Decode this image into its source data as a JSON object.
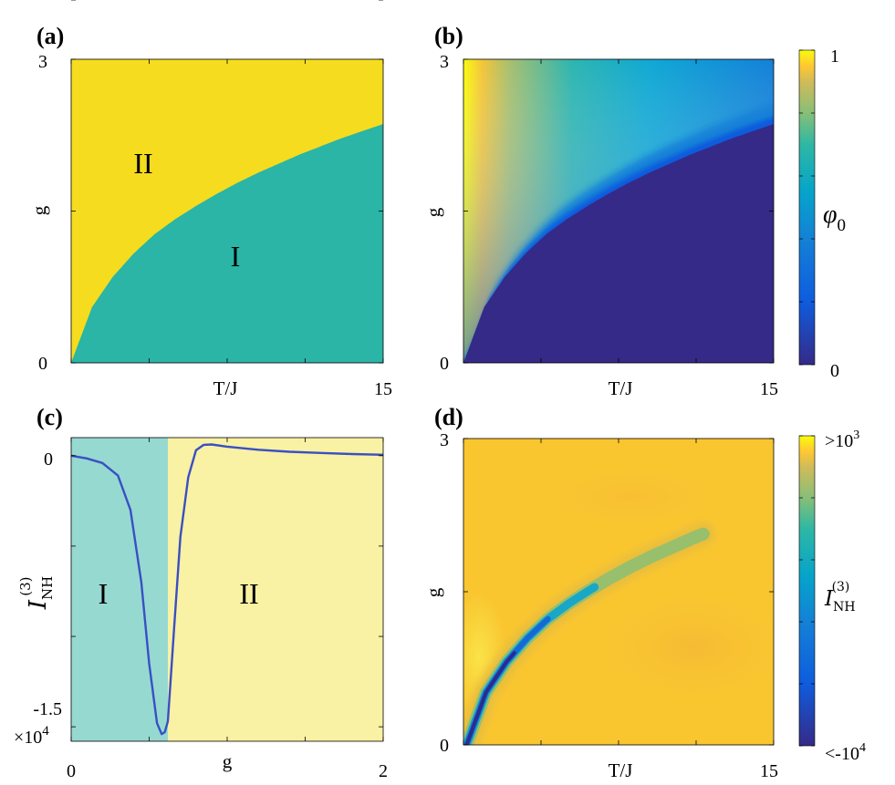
{
  "panels": {
    "a": {
      "label": "(a)",
      "xlabel": "T/J",
      "ylabel": "g",
      "xtick_labels": [
        "0",
        "15"
      ],
      "ytick_labels": [
        "0",
        "3"
      ],
      "region_labels": {
        "upper": "II",
        "lower": "I"
      }
    },
    "b": {
      "label": "(b)",
      "xlabel": "T/J",
      "ylabel": "g",
      "xtick_labels": [
        "0",
        "15"
      ],
      "ytick_labels": [
        "0",
        "3"
      ],
      "colorbar_label": "φ",
      "colorbar_label_sub": "0",
      "colorbar_ticks": [
        "1",
        "0"
      ]
    },
    "c": {
      "label": "(c)",
      "xlabel": "g",
      "ylabel": "I",
      "ylabel_sub": "NH",
      "ylabel_sup": "(3)",
      "xtick_labels": [
        "0",
        "2"
      ],
      "ytick_labels": [
        "0",
        "-1.5"
      ],
      "exponent_label": "×10",
      "exponent_sup": "4",
      "region_labels": {
        "left": "I",
        "right": "II"
      }
    },
    "d": {
      "label": "(d)",
      "xlabel": "T/J",
      "ylabel": "g",
      "xtick_labels": [
        "0",
        "15"
      ],
      "ytick_labels": [
        "0",
        "3"
      ],
      "colorbar_label": "I",
      "colorbar_label_sub": "NH",
      "colorbar_label_sup": "(3)",
      "colorbar_top": ">10",
      "colorbar_top_sup": "3",
      "colorbar_bottom": "<-10",
      "colorbar_bottom_sup": "4"
    }
  },
  "colors": {
    "phase_I": "#2ab5a6",
    "phase_II": "#f5dc1e",
    "shade_I": "#96d9d1",
    "shade_II": "#f9f1a3",
    "curve": "#3a4fc4",
    "cmap_low": "#352a87",
    "cmap_high": "#f9fb0e"
  },
  "chart_data": [
    {
      "type": "heatmap",
      "panel": "a",
      "description": "phase diagram, boundary g_c(T)",
      "xlim": [
        0,
        15
      ],
      "ylim": [
        0,
        3
      ],
      "boundary": {
        "x": [
          0,
          1,
          2,
          3,
          4,
          5,
          6,
          7,
          8,
          9,
          10,
          11,
          12,
          13,
          14,
          15
        ],
        "y": [
          0,
          0.55,
          0.85,
          1.08,
          1.27,
          1.42,
          1.55,
          1.67,
          1.78,
          1.88,
          1.97,
          2.06,
          2.14,
          2.22,
          2.29,
          2.36
        ]
      }
    },
    {
      "type": "heatmap",
      "panel": "b",
      "xlim": [
        0,
        15
      ],
      "ylim": [
        0,
        3
      ],
      "zlim": [
        0,
        1
      ]
    },
    {
      "type": "line",
      "panel": "c",
      "xlim": [
        0,
        2
      ],
      "ylim": [
        -15800,
        1000
      ],
      "boundary_g": 0.62,
      "x": [
        0,
        0.1,
        0.2,
        0.3,
        0.38,
        0.45,
        0.5,
        0.55,
        0.58,
        0.6,
        0.62,
        0.66,
        0.7,
        0.75,
        0.8,
        0.85,
        0.9,
        1.0,
        1.2,
        1.4,
        1.6,
        1.8,
        2.0
      ],
      "y": [
        0,
        -150,
        -400,
        -1100,
        -3000,
        -7000,
        -11500,
        -14800,
        -15400,
        -15300,
        -14700,
        -9500,
        -4500,
        -1200,
        300,
        600,
        620,
        500,
        330,
        220,
        150,
        90,
        50
      ]
    },
    {
      "type": "heatmap",
      "panel": "d",
      "xlim": [
        0,
        15
      ],
      "ylim": [
        0,
        3
      ]
    }
  ]
}
